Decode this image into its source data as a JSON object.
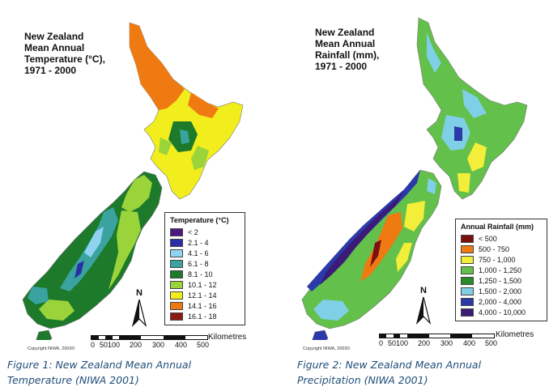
{
  "left_map": {
    "title": "New Zealand\nMean Annual\nTemperature (°C),\n1971 - 2000",
    "legend_title": "Temperature (°C)",
    "legend": [
      {
        "label": "< 2",
        "color": "#4b1a80"
      },
      {
        "label": "2.1 - 4",
        "color": "#2a2fa6"
      },
      {
        "label": "4.1 - 6",
        "color": "#8fd3f0"
      },
      {
        "label": "6.1 - 8",
        "color": "#3aa3a0"
      },
      {
        "label": "8.1 - 10",
        "color": "#1c7a2a"
      },
      {
        "label": "10.1 - 12",
        "color": "#9ad43a"
      },
      {
        "label": "12.1 - 14",
        "color": "#f2ee1e"
      },
      {
        "label": "14.1 - 16",
        "color": "#f07a12"
      },
      {
        "label": "16.1 - 18",
        "color": "#8c1a10"
      }
    ],
    "north_label": "N",
    "copyright": "Copyright NIWA, 2003©",
    "scale_unit": "Kilometres",
    "scale_ticks": [
      "0",
      "50100",
      "200",
      "300",
      "400",
      "500"
    ],
    "caption": "Figure 1: New Zealand Mean Annual\nTemperature (NIWA 2001)"
  },
  "right_map": {
    "title": "New Zealand\nMean Annual\nRainfall (mm),\n1971 - 2000",
    "legend_title": "Annual Rainfall (mm)",
    "legend": [
      {
        "label": "< 500",
        "color": "#7a1010"
      },
      {
        "label": "500 - 750",
        "color": "#f07a12"
      },
      {
        "label": "750 - 1,000",
        "color": "#f2ee3a"
      },
      {
        "label": "1,000 - 1,250",
        "color": "#63c04a"
      },
      {
        "label": "1,250 - 1,500",
        "color": "#2a8a2a"
      },
      {
        "label": "1,500 - 2,000",
        "color": "#7fd0e6"
      },
      {
        "label": "2,000 - 4,000",
        "color": "#2b3aa8"
      },
      {
        "label": "4,000 - 10,000",
        "color": "#3b1a78"
      }
    ],
    "north_label": "N",
    "copyright": "Copyright NIWA, 2003©",
    "scale_unit": "Kilometres",
    "scale_ticks": [
      "0",
      "50100",
      "200",
      "300",
      "400",
      "500"
    ],
    "caption": "Figure 2: New Zealand Mean Annual\nPrecipitation (NIWA 2001)"
  }
}
